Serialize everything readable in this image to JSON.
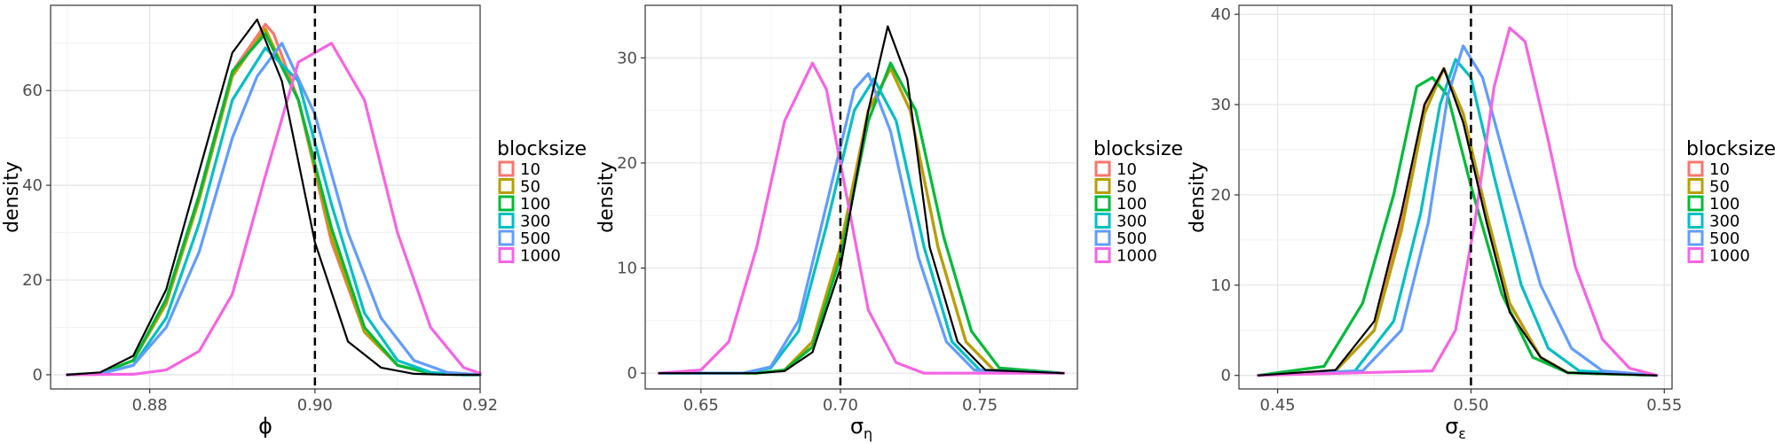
{
  "legend_title": "blocksize",
  "series_colors": [
    "#F8766D",
    "#B79F00",
    "#00BA38",
    "#00BFC4",
    "#619CFF",
    "#F564E3"
  ],
  "chart_data": [
    {
      "type": "line",
      "xlabel": "ϕ",
      "ylabel": "density",
      "xlim": [
        0.868,
        0.92
      ],
      "ylim": [
        -3,
        78
      ],
      "x_ticks": [
        0.88,
        0.9,
        0.92
      ],
      "x_tick_labels": [
        "0.88",
        "0.90",
        "0.92"
      ],
      "y_ticks": [
        0,
        20,
        40,
        60
      ],
      "y_tick_labels": [
        "0",
        "20",
        "40",
        "60"
      ],
      "grid": true,
      "legend": "right",
      "reference_line": 0.9,
      "series": [
        {
          "name": "10",
          "color": "#F8766D",
          "x": [
            0.87,
            0.874,
            0.878,
            0.882,
            0.886,
            0.89,
            0.894,
            0.895,
            0.898,
            0.902,
            0.906,
            0.91,
            0.914,
            0.918,
            0.92
          ],
          "y": [
            0,
            0.3,
            3,
            15,
            38,
            64,
            74,
            72,
            58,
            28,
            9,
            2,
            0.3,
            0,
            0
          ]
        },
        {
          "name": "50",
          "color": "#B79F00",
          "x": [
            0.87,
            0.874,
            0.878,
            0.882,
            0.886,
            0.89,
            0.894,
            0.898,
            0.902,
            0.906,
            0.91,
            0.914,
            0.918,
            0.92
          ],
          "y": [
            0,
            0.3,
            3,
            15,
            37,
            63,
            73,
            58,
            29,
            9,
            2,
            0.3,
            0,
            0
          ]
        },
        {
          "name": "100",
          "color": "#00BA38",
          "x": [
            0.87,
            0.874,
            0.878,
            0.882,
            0.886,
            0.89,
            0.894,
            0.898,
            0.902,
            0.906,
            0.91,
            0.914,
            0.918,
            0.92
          ],
          "y": [
            0,
            0.3,
            3,
            16,
            38,
            64,
            72,
            58,
            31,
            10,
            2,
            0.3,
            0,
            0
          ]
        },
        {
          "name": "300",
          "color": "#00BFC4",
          "x": [
            0.87,
            0.874,
            0.878,
            0.882,
            0.886,
            0.89,
            0.894,
            0.898,
            0.902,
            0.906,
            0.91,
            0.914,
            0.918,
            0.92
          ],
          "y": [
            0,
            0.2,
            2,
            12,
            32,
            58,
            69,
            62,
            36,
            13,
            3,
            0.5,
            0,
            0
          ]
        },
        {
          "name": "500",
          "color": "#619CFF",
          "x": [
            0.87,
            0.874,
            0.878,
            0.882,
            0.886,
            0.89,
            0.893,
            0.896,
            0.9,
            0.904,
            0.908,
            0.912,
            0.916,
            0.92
          ],
          "y": [
            0,
            0.2,
            2,
            10,
            26,
            50,
            63,
            70,
            55,
            30,
            12,
            3,
            0.5,
            0
          ]
        },
        {
          "name": "1000",
          "color": "#F564E3",
          "x": [
            0.87,
            0.878,
            0.882,
            0.886,
            0.89,
            0.894,
            0.898,
            0.902,
            0.906,
            0.91,
            0.914,
            0.918,
            0.92
          ],
          "y": [
            0,
            0.1,
            1,
            5,
            17,
            42,
            66,
            70,
            58,
            30,
            10,
            1.5,
            0.3
          ]
        },
        {
          "name": "",
          "color": "#000000",
          "x": [
            0.87,
            0.874,
            0.878,
            0.882,
            0.886,
            0.89,
            0.893,
            0.896,
            0.9,
            0.904,
            0.908,
            0.912,
            0.916,
            0.92
          ],
          "y": [
            0,
            0.5,
            4,
            18,
            43,
            68,
            75,
            62,
            28,
            7,
            1.5,
            0.2,
            0,
            0
          ]
        }
      ]
    },
    {
      "type": "line",
      "xlabel": "σ",
      "xlabel_sub": "η",
      "ylabel": "density",
      "xlim": [
        0.63,
        0.785
      ],
      "ylim": [
        -1.5,
        35
      ],
      "x_ticks": [
        0.65,
        0.7,
        0.75
      ],
      "x_tick_labels": [
        "0.65",
        "0.70",
        "0.75"
      ],
      "y_ticks": [
        0,
        10,
        20,
        30
      ],
      "y_tick_labels": [
        "0",
        "10",
        "20",
        "30"
      ],
      "grid": true,
      "legend": "right",
      "reference_line": 0.7,
      "series": [
        {
          "name": "10",
          "color": "#F8766D",
          "x": [
            0.635,
            0.67,
            0.68,
            0.69,
            0.7,
            0.71,
            0.718,
            0.725,
            0.735,
            0.745,
            0.755,
            0.78
          ],
          "y": [
            0,
            0,
            0.3,
            3,
            12,
            25,
            29,
            25,
            12,
            3,
            0.3,
            0
          ]
        },
        {
          "name": "50",
          "color": "#B79F00",
          "x": [
            0.635,
            0.67,
            0.68,
            0.69,
            0.7,
            0.71,
            0.718,
            0.725,
            0.735,
            0.745,
            0.755,
            0.78
          ],
          "y": [
            0,
            0,
            0.3,
            3,
            12,
            25,
            29,
            25,
            12,
            3,
            0.3,
            0
          ]
        },
        {
          "name": "100",
          "color": "#00BA38",
          "x": [
            0.635,
            0.67,
            0.68,
            0.69,
            0.7,
            0.71,
            0.718,
            0.727,
            0.737,
            0.747,
            0.757,
            0.78
          ],
          "y": [
            0,
            0,
            0.3,
            2.5,
            11,
            24,
            29.5,
            25,
            13,
            4,
            0.5,
            0
          ]
        },
        {
          "name": "300",
          "color": "#00BFC4",
          "x": [
            0.635,
            0.665,
            0.675,
            0.685,
            0.695,
            0.705,
            0.712,
            0.72,
            0.73,
            0.74,
            0.75,
            0.78
          ],
          "y": [
            0,
            0,
            0.5,
            4,
            14,
            25,
            28,
            24,
            12,
            3,
            0.3,
            0
          ]
        },
        {
          "name": "500",
          "color": "#619CFF",
          "x": [
            0.635,
            0.665,
            0.675,
            0.685,
            0.695,
            0.705,
            0.71,
            0.718,
            0.728,
            0.738,
            0.748,
            0.78
          ],
          "y": [
            0,
            0,
            0.6,
            5,
            16,
            27,
            28.5,
            23,
            11,
            3,
            0.3,
            0
          ]
        },
        {
          "name": "1000",
          "color": "#F564E3",
          "x": [
            0.635,
            0.65,
            0.66,
            0.67,
            0.68,
            0.69,
            0.695,
            0.7,
            0.71,
            0.72,
            0.73,
            0.78
          ],
          "y": [
            0,
            0.3,
            3,
            12,
            24,
            29.5,
            27,
            20,
            6,
            1,
            0,
            0
          ]
        },
        {
          "name": "",
          "color": "#000000",
          "x": [
            0.635,
            0.67,
            0.68,
            0.69,
            0.7,
            0.71,
            0.717,
            0.724,
            0.732,
            0.742,
            0.752,
            0.78
          ],
          "y": [
            0,
            0,
            0.2,
            2,
            10,
            25,
            33,
            28,
            12,
            3,
            0.3,
            0
          ]
        }
      ]
    },
    {
      "type": "line",
      "xlabel": "σ",
      "xlabel_sub": "ε",
      "ylabel": "density",
      "xlim": [
        0.44,
        0.552
      ],
      "ylim": [
        -1.5,
        41
      ],
      "x_ticks": [
        0.45,
        0.5,
        0.55
      ],
      "x_tick_labels": [
        "0.45",
        "0.50",
        "0.55"
      ],
      "y_ticks": [
        0,
        10,
        20,
        30,
        40
      ],
      "y_tick_labels": [
        "0",
        "10",
        "20",
        "30",
        "40"
      ],
      "grid": true,
      "legend": "right",
      "reference_line": 0.5,
      "series": [
        {
          "name": "10",
          "color": "#F8766D",
          "x": [
            0.445,
            0.465,
            0.475,
            0.482,
            0.488,
            0.493,
            0.498,
            0.504,
            0.51,
            0.518,
            0.525,
            0.548
          ],
          "y": [
            0,
            0.5,
            5,
            17,
            30,
            34,
            29,
            18,
            8,
            2,
            0.3,
            0
          ]
        },
        {
          "name": "50",
          "color": "#B79F00",
          "x": [
            0.445,
            0.465,
            0.475,
            0.482,
            0.488,
            0.493,
            0.498,
            0.504,
            0.51,
            0.518,
            0.525,
            0.548
          ],
          "y": [
            0,
            0.5,
            5,
            16,
            29,
            34,
            29,
            18,
            8,
            2,
            0.3,
            0
          ]
        },
        {
          "name": "100",
          "color": "#00BA38",
          "x": [
            0.445,
            0.462,
            0.472,
            0.48,
            0.486,
            0.49,
            0.494,
            0.5,
            0.508,
            0.516,
            0.525,
            0.548
          ],
          "y": [
            0,
            1,
            8,
            20,
            32,
            33,
            31,
            21,
            9,
            2,
            0.3,
            0
          ]
        },
        {
          "name": "300",
          "color": "#00BFC4",
          "x": [
            0.445,
            0.47,
            0.48,
            0.487,
            0.492,
            0.496,
            0.5,
            0.506,
            0.513,
            0.52,
            0.528,
            0.548
          ],
          "y": [
            0,
            0.5,
            6,
            18,
            30,
            35,
            33,
            22,
            10,
            3,
            0.5,
            0
          ]
        },
        {
          "name": "500",
          "color": "#619CFF",
          "x": [
            0.445,
            0.472,
            0.482,
            0.489,
            0.494,
            0.498,
            0.503,
            0.51,
            0.518,
            0.526,
            0.534,
            0.548
          ],
          "y": [
            0,
            0.5,
            5,
            17,
            31,
            36.5,
            33,
            22,
            10,
            3,
            0.5,
            0
          ]
        },
        {
          "name": "1000",
          "color": "#F564E3",
          "x": [
            0.445,
            0.49,
            0.496,
            0.501,
            0.506,
            0.51,
            0.514,
            0.52,
            0.527,
            0.534,
            0.541,
            0.548
          ],
          "y": [
            0,
            0.5,
            5,
            17,
            32,
            38.5,
            37,
            26,
            12,
            4,
            0.8,
            0
          ]
        },
        {
          "name": "",
          "color": "#000000",
          "x": [
            0.445,
            0.465,
            0.475,
            0.482,
            0.488,
            0.493,
            0.498,
            0.504,
            0.51,
            0.518,
            0.525,
            0.548
          ],
          "y": [
            0,
            0.6,
            6,
            18,
            30,
            34,
            28,
            17,
            7,
            2,
            0.3,
            0
          ]
        }
      ]
    }
  ]
}
